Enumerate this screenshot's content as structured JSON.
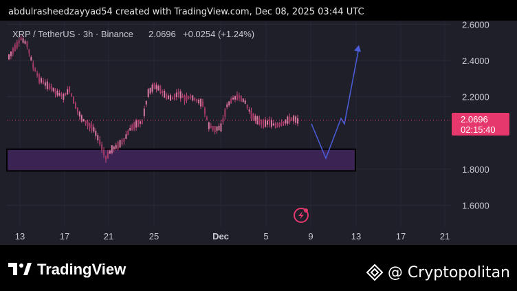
{
  "header": {
    "credit": "abdulrasheedzayyad54 created with TradingView.com, Dec 08, 2025 03:44 UTC"
  },
  "symbol_line": {
    "symbol": "XRP / TetherUS · 3h · Binance",
    "price": "2.0696",
    "change": "+0.0254 (+1.24%)"
  },
  "price_tag": {
    "price": "2.0696",
    "countdown": "02:15:40"
  },
  "colors": {
    "background": "#1e1f29",
    "candle": "#c44b7a",
    "zone_fill": "#3b2453",
    "projection": "#4a5bd6",
    "price_tag": "#e7386e",
    "text": "#c8c9d0"
  },
  "footer": {
    "left_brand": "TradingView",
    "right_brand": "@ Cryptopolitan"
  },
  "chart_data": {
    "type": "line",
    "title": "XRP / TetherUS · 3h · Binance",
    "xlabel": "",
    "ylabel": "",
    "x_ticks": [
      "13",
      "17",
      "21",
      "25",
      "Dec",
      "5",
      "9",
      "13",
      "17",
      "21"
    ],
    "y_ticks": [
      "2.6000",
      "2.4000",
      "2.2000",
      "1.8000",
      "1.6000"
    ],
    "ylim": [
      1.48,
      2.62
    ],
    "last_price": 2.0696,
    "series": [
      {
        "type": "candlestick-trace",
        "values": [
          2.42,
          2.47,
          2.52,
          2.49,
          2.37,
          2.3,
          2.27,
          2.25,
          2.22,
          2.2,
          2.24,
          2.15,
          2.08,
          2.05,
          2.02,
          1.95,
          1.86,
          1.91,
          1.93,
          1.96,
          2.02,
          2.05,
          2.06,
          2.22,
          2.26,
          2.24,
          2.2,
          2.19,
          2.22,
          2.19,
          2.2,
          2.18,
          2.16,
          2.04,
          2.02,
          2.03,
          2.15,
          2.19,
          2.2,
          2.17,
          2.1,
          2.07,
          2.05,
          2.06,
          2.04,
          2.05,
          2.07,
          2.08,
          2.06
        ]
      },
      {
        "type": "projection",
        "values": [
          2.05,
          1.86,
          2.08,
          2.05,
          2.47
        ]
      }
    ],
    "zones": [
      {
        "y_low": 1.79,
        "y_high": 1.91
      }
    ]
  }
}
